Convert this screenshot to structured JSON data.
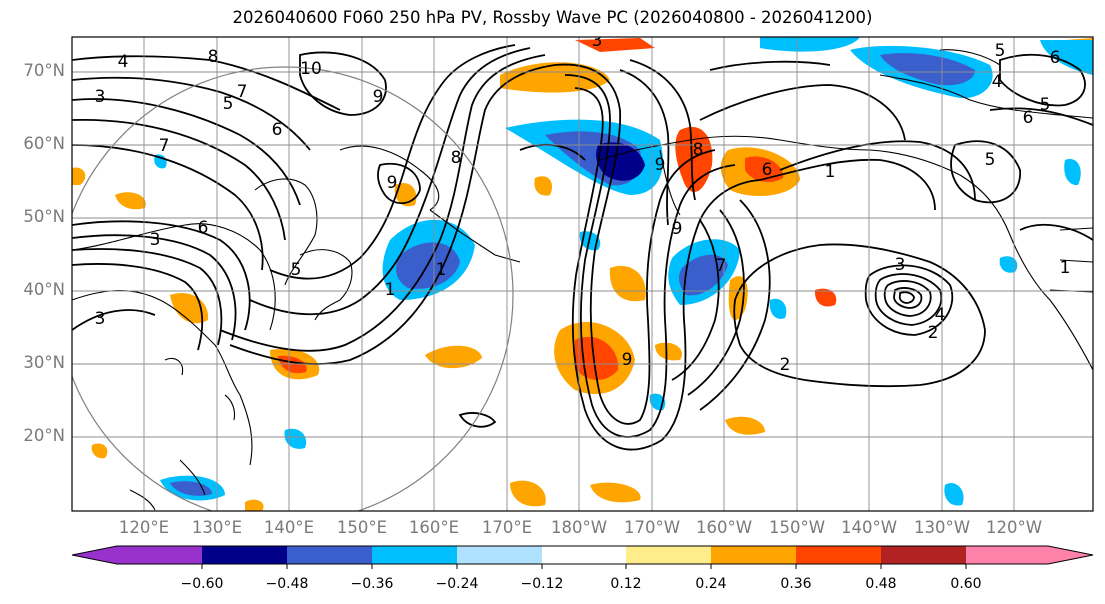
{
  "title": "2026040600 F060 250 hPa PV, Rossby Wave PC (2026040800 - 2026041200)",
  "latitude_labels": [
    "70°N",
    "60°N",
    "50°N",
    "40°N",
    "30°N",
    "20°N"
  ],
  "longitude_labels": [
    "120°E",
    "130°E",
    "140°E",
    "150°E",
    "160°E",
    "170°E",
    "180°W",
    "170°W",
    "160°W",
    "150°W",
    "140°W",
    "130°W",
    "120°W"
  ],
  "contour_labels": [
    "4",
    "3",
    "8",
    "7",
    "5",
    "6",
    "10",
    "9",
    "8",
    "7",
    "3",
    "6",
    "9",
    "5",
    "3",
    "1",
    "1",
    "9",
    "9",
    "8",
    "7",
    "1",
    "2",
    "3",
    "4",
    "2",
    "6",
    "5",
    "4",
    "6",
    "5",
    "5",
    "1",
    "9",
    "6",
    "3"
  ],
  "colorbar": {
    "colors": [
      "#9932cc",
      "#00008b",
      "#3a5fcd",
      "#00bfff",
      "#b0e2ff",
      "#ffffff",
      "#ffec8b",
      "#ffa500",
      "#ff4500",
      "#b22222",
      "#ff82ab"
    ],
    "tick_labels": [
      "−0.60",
      "−0.48",
      "−0.36",
      "−0.24",
      "−0.12",
      "0.12",
      "0.24",
      "0.36",
      "0.48",
      "0.60"
    ]
  }
}
